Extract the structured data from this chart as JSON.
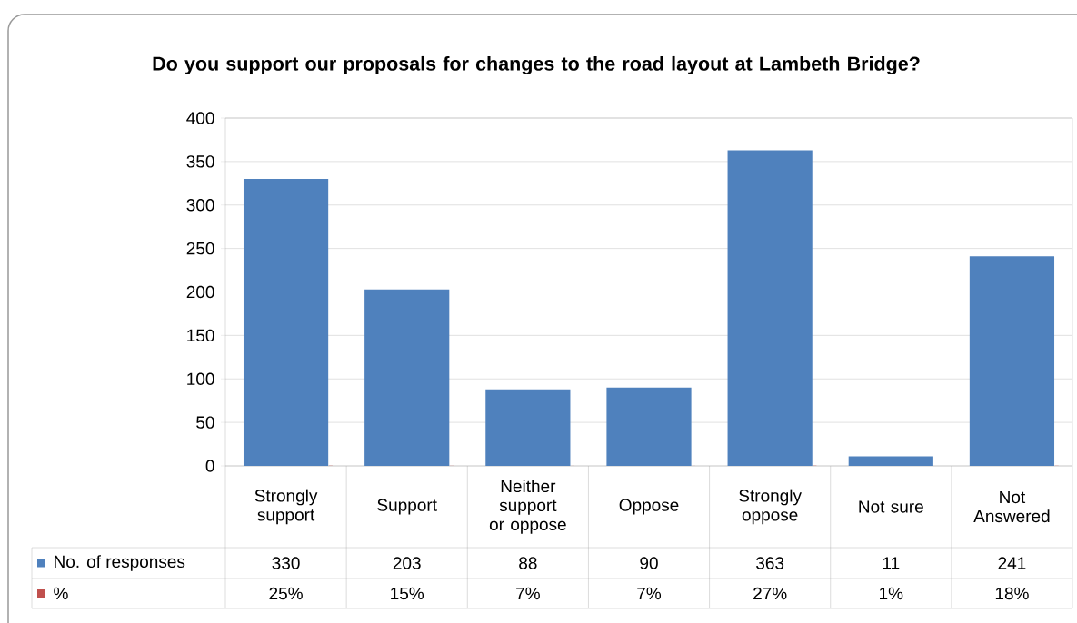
{
  "chart_data": {
    "type": "bar",
    "title": "Do you support our proposals for changes to the road layout at Lambeth Bridge?",
    "categories": [
      "Strongly support",
      "Support",
      "Neither support or oppose",
      "Oppose",
      "Strongly oppose",
      "Not sure",
      "Not Answered"
    ],
    "series": [
      {
        "name": "No. of responses",
        "color": "#4f81bd",
        "values": [
          330,
          203,
          88,
          90,
          363,
          11,
          241
        ],
        "value_labels": [
          "330",
          "203",
          "88",
          "90",
          "363",
          "11",
          "241"
        ]
      },
      {
        "name": "%",
        "color": "#c0504d",
        "values": [
          0.25,
          0.15,
          0.07,
          0.07,
          0.27,
          0.01,
          0.18
        ],
        "value_labels": [
          "25%",
          "15%",
          "7%",
          "7%",
          "27%",
          "1%",
          "18%"
        ]
      }
    ],
    "ylim": [
      0,
      400
    ],
    "yticks": [
      0,
      50,
      100,
      150,
      200,
      250,
      300,
      350,
      400
    ],
    "grid": "y",
    "legend": "bottom"
  }
}
